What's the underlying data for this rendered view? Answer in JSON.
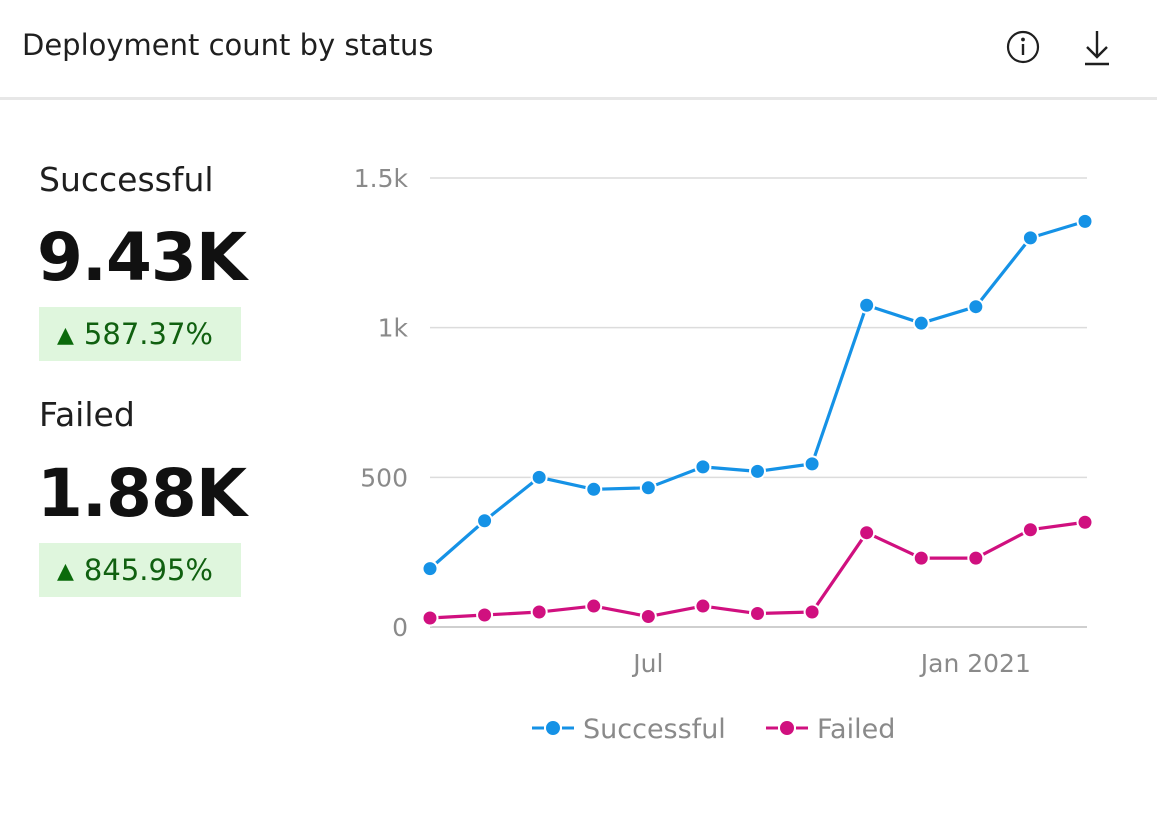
{
  "header": {
    "title": "Deployment count by status",
    "info_icon": "info-icon",
    "download_icon": "download-icon"
  },
  "metrics": {
    "successful": {
      "label": "Successful",
      "value": "9.43K",
      "change": "587.37%"
    },
    "failed": {
      "label": "Failed",
      "value": "1.88K",
      "change": "845.95%"
    }
  },
  "colors": {
    "successful": "#1592e6",
    "failed": "#d0107f",
    "grid": "#dcdcdc",
    "badge_bg": "#dff6dd",
    "badge_text": "#106010"
  },
  "chart_data": {
    "type": "line",
    "xlabel": "",
    "ylabel": "",
    "ylim": [
      0,
      1500
    ],
    "y_ticks": [
      "0",
      "500",
      "1k",
      "1.5k"
    ],
    "x_ticks": [
      "Jul",
      "Jan 2021"
    ],
    "x": [
      "2020-03",
      "2020-04",
      "2020-05",
      "2020-06",
      "2020-07",
      "2020-08",
      "2020-09",
      "2020-10",
      "2020-11",
      "2020-12",
      "2021-01",
      "2021-02",
      "2021-03"
    ],
    "series": [
      {
        "name": "Successful",
        "values": [
          195,
          355,
          500,
          460,
          465,
          535,
          520,
          545,
          1075,
          1015,
          1070,
          1300,
          1355
        ]
      },
      {
        "name": "Failed",
        "values": [
          30,
          40,
          50,
          70,
          35,
          70,
          45,
          50,
          315,
          230,
          230,
          325,
          350
        ]
      }
    ],
    "legend_position": "bottom",
    "grid": true
  }
}
